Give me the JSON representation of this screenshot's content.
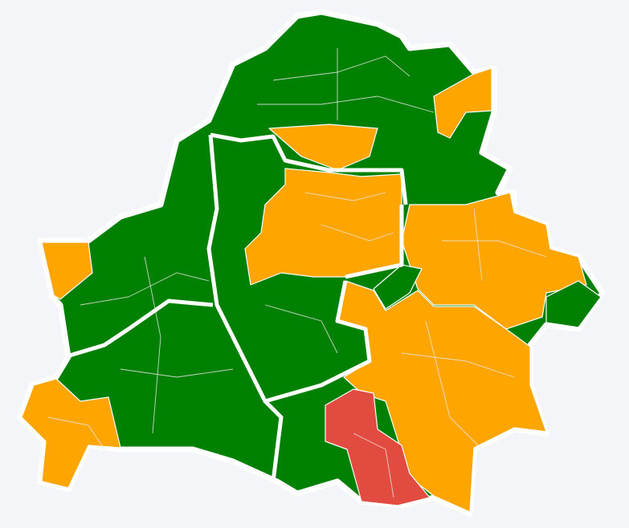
{
  "map": {
    "background": "#f3f5f8",
    "border_color": "#ffffff",
    "colors": {
      "green": "#008000",
      "orange": "#ffa500",
      "red": "#e24b3f"
    }
  }
}
